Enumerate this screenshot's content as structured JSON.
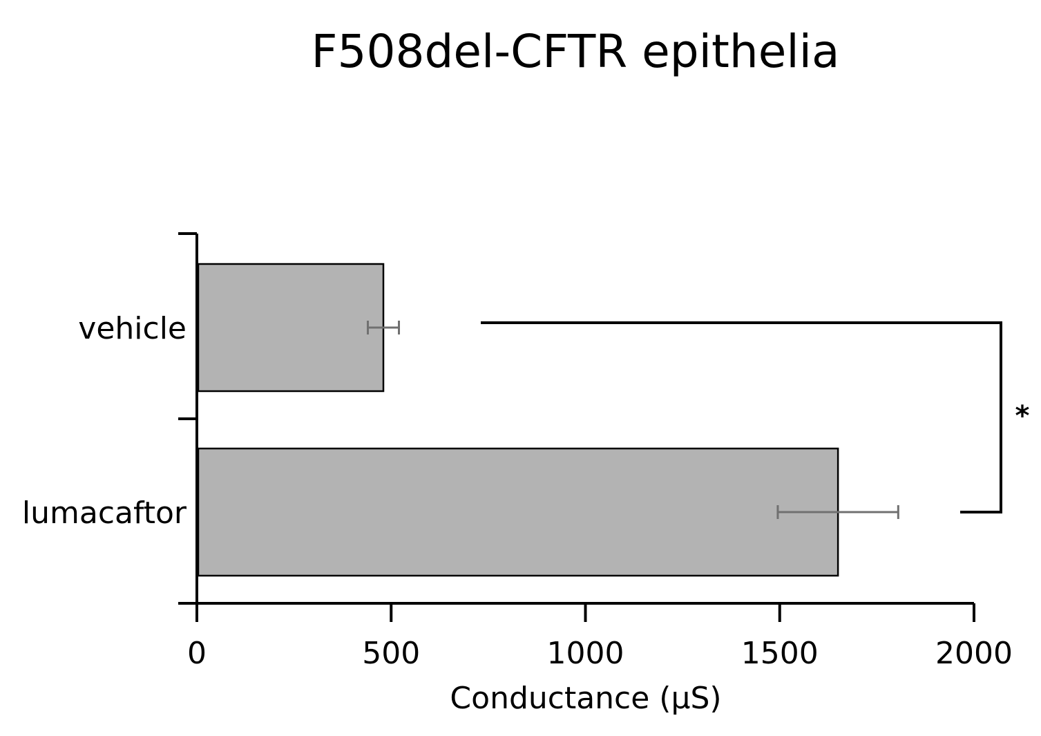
{
  "chart_data": {
    "type": "bar",
    "orientation": "horizontal",
    "title": "F508del-CFTR epithelia",
    "xlabel": "Conductance (μS)",
    "ylabel": "",
    "xlim": [
      0,
      2000
    ],
    "xticks": [
      0,
      500,
      1000,
      1500,
      2000
    ],
    "xtick_labels": [
      "0",
      "500",
      "1000",
      "1500",
      "2000"
    ],
    "categories": [
      "vehicle",
      "lumacaftor"
    ],
    "values": [
      480,
      1650
    ],
    "errors": [
      40,
      155
    ],
    "bar_color": "#b3b3b3",
    "error_color": "#707070",
    "grid": false,
    "legend": "none",
    "annotation": {
      "text": "*",
      "between": [
        "vehicle",
        "lumacaftor"
      ]
    }
  }
}
